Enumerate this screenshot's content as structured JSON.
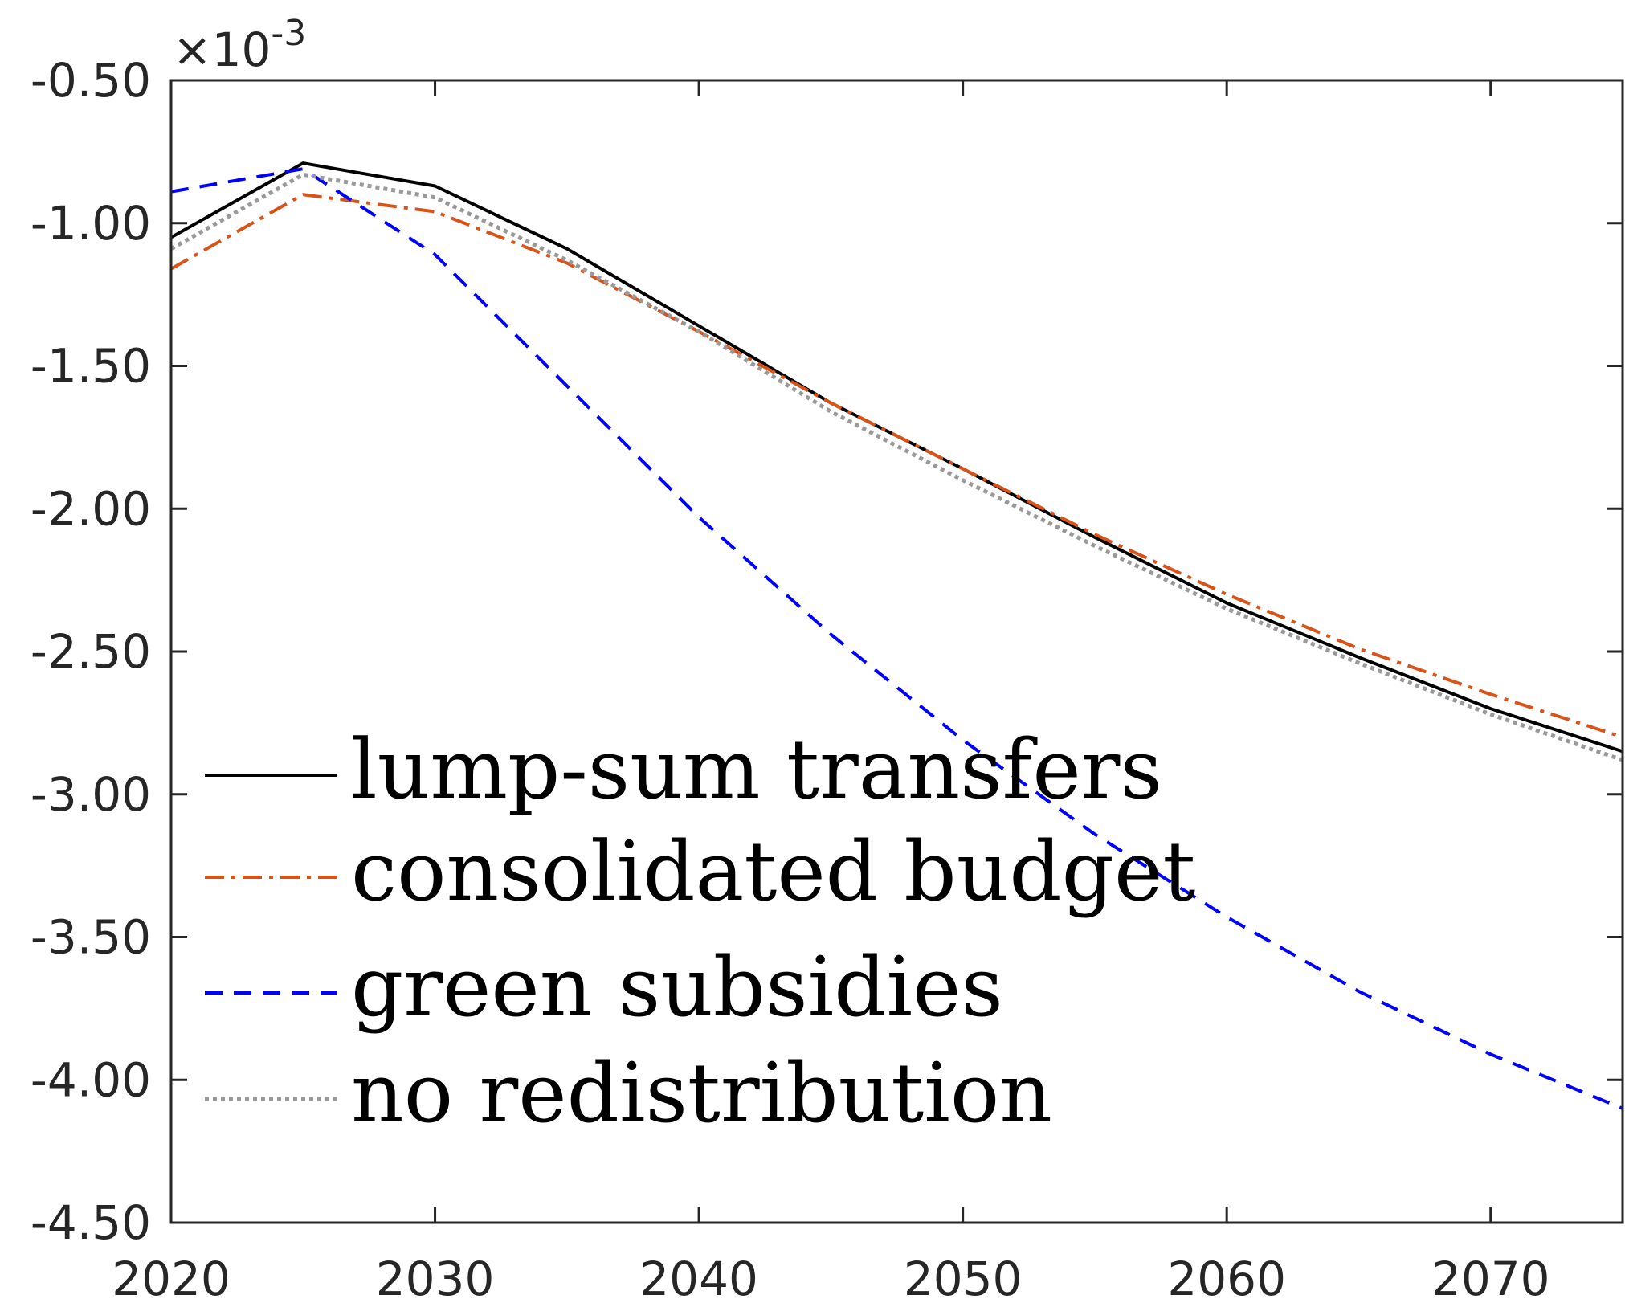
{
  "chart_data": {
    "type": "line",
    "title": "",
    "xlabel": "",
    "ylabel": "",
    "scale_exponent_label": "×10",
    "scale_exponent_power": "-3",
    "xlim": [
      2020,
      2075
    ],
    "ylim": [
      -4.5,
      -0.5
    ],
    "xticks": [
      2020,
      2030,
      2040,
      2050,
      2060,
      2070
    ],
    "xtick_labels": [
      "2020",
      "2030",
      "2040",
      "2050",
      "2060",
      "2070"
    ],
    "yticks": [
      -0.5,
      -1.0,
      -1.5,
      -2.0,
      -2.5,
      -3.0,
      -3.5,
      -4.0,
      -4.5
    ],
    "ytick_labels": [
      "-0.50",
      "-1.00",
      "-1.50",
      "-2.00",
      "-2.50",
      "-3.00",
      "-3.50",
      "-4.00",
      "-4.50"
    ],
    "grid": false,
    "legend_position": "bottom-left",
    "x": [
      2020,
      2025,
      2030,
      2035,
      2040,
      2045,
      2050,
      2055,
      2060,
      2065,
      2070,
      2075
    ],
    "series": [
      {
        "name": "lump-sum transfers",
        "color": "#000000",
        "style": "solid",
        "values": [
          -1.05,
          -0.79,
          -0.87,
          -1.09,
          -1.36,
          -1.63,
          -1.86,
          -2.1,
          -2.33,
          -2.52,
          -2.7,
          -2.85
        ]
      },
      {
        "name": "consolidated budget",
        "color": "#D95319",
        "style": "dashdot",
        "values": [
          -1.16,
          -0.9,
          -0.96,
          -1.14,
          -1.38,
          -1.63,
          -1.86,
          -2.09,
          -2.3,
          -2.49,
          -2.65,
          -2.8
        ]
      },
      {
        "name": "green subsidies",
        "color": "#0000FF",
        "style": "dashed",
        "values": [
          -0.89,
          -0.81,
          -1.11,
          -1.57,
          -2.03,
          -2.44,
          -2.81,
          -3.14,
          -3.43,
          -3.69,
          -3.91,
          -4.1
        ]
      },
      {
        "name": "no redistribution",
        "color": "#999999",
        "style": "dotted",
        "values": [
          -1.09,
          -0.83,
          -0.91,
          -1.13,
          -1.38,
          -1.66,
          -1.9,
          -2.13,
          -2.35,
          -2.54,
          -2.72,
          -2.88
        ]
      }
    ]
  }
}
